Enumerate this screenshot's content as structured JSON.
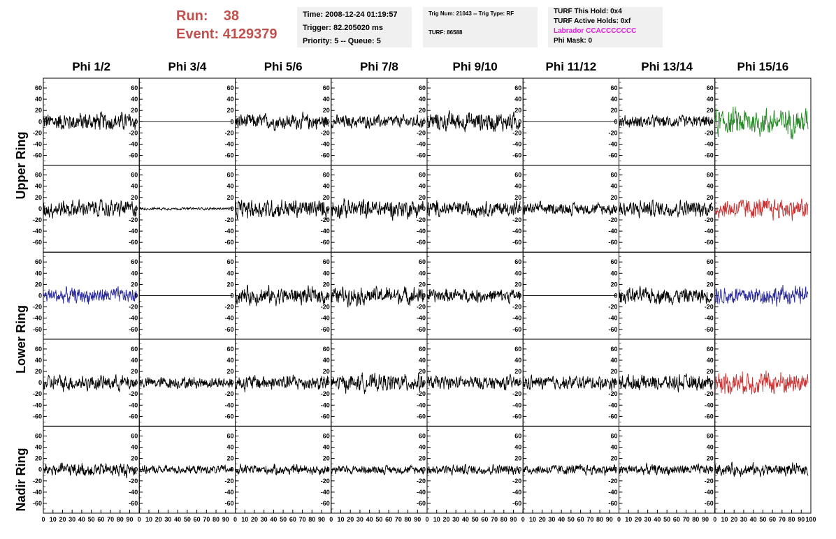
{
  "header": {
    "run_label": "Run:",
    "run_value": "38",
    "event_label": "Event:",
    "event_value": "4129379",
    "time": "Time: 2008-12-24 01:19:57",
    "trigger": "Trigger: 82.205020 ms",
    "priority": "Priority: 5 -- Queue: 5",
    "trig_num": "Trig Num: 21043 -- Trig Type: RF",
    "turf": "TURF: 86588",
    "turf_hold": "TURF This Hold: 0x4",
    "turf_active": "TURF Active Holds: 0xf",
    "labrador": "Labrador CCACCCCCCC",
    "phi_mask": "Phi Mask: 0"
  },
  "colors": {
    "header_red": "#c0504d",
    "magenta": "#e020e0",
    "black": "#000000",
    "green": "#2a8a2a",
    "red": "#c83232",
    "blue": "#2a2a9a"
  },
  "chart_data": {
    "type": "line",
    "columns": [
      "Phi 1/2",
      "Phi 3/4",
      "Phi 5/6",
      "Phi 7/8",
      "Phi 9/10",
      "Phi 11/12",
      "Phi 13/14",
      "Phi 15/16"
    ],
    "row_labels": [
      "Upper Ring",
      "Lower Ring",
      "Nadir Ring"
    ],
    "ylim": [
      -70,
      70
    ],
    "yticks": [
      -60,
      -40,
      -20,
      0,
      20,
      40,
      60
    ],
    "xlim": [
      0,
      100
    ],
    "xticks": [
      0,
      10,
      20,
      30,
      40,
      50,
      60,
      70,
      80,
      90,
      100
    ],
    "rows": [
      {
        "colors": [
          "black",
          "black",
          "black",
          "black",
          "black",
          "black",
          "black",
          "green"
        ],
        "amp": [
          22,
          0,
          18,
          15,
          22,
          0,
          14,
          32
        ]
      },
      {
        "colors": [
          "black",
          "black",
          "black",
          "black",
          "black",
          "black",
          "black",
          "red"
        ],
        "amp": [
          20,
          3,
          22,
          22,
          18,
          14,
          20,
          24
        ]
      },
      {
        "colors": [
          "blue",
          "black",
          "black",
          "black",
          "black",
          "black",
          "black",
          "blue"
        ],
        "amp": [
          18,
          0,
          20,
          20,
          16,
          0,
          18,
          22
        ]
      },
      {
        "colors": [
          "black",
          "black",
          "black",
          "black",
          "black",
          "black",
          "black",
          "red"
        ],
        "amp": [
          18,
          14,
          18,
          20,
          16,
          16,
          18,
          26
        ]
      },
      {
        "colors": [
          "black",
          "black",
          "black",
          "black",
          "black",
          "black",
          "black",
          "black"
        ],
        "amp": [
          16,
          10,
          12,
          10,
          12,
          12,
          12,
          14
        ]
      }
    ]
  }
}
